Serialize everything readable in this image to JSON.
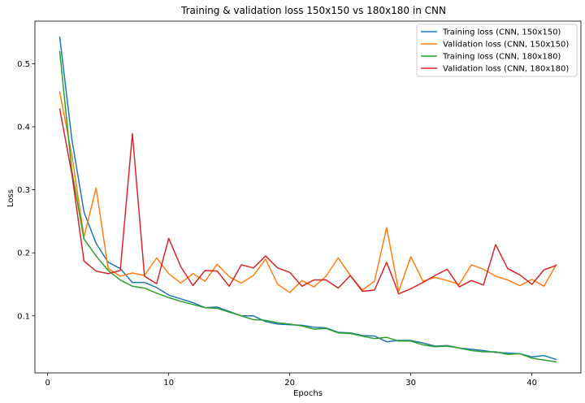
{
  "chart_data": {
    "type": "line",
    "title": "Training & validation loss 150x150 vs 180x180 in CNN",
    "xlabel": "Epochs",
    "ylabel": "Loss",
    "xlim": [
      -1.05,
      44.05
    ],
    "ylim": [
      0.0095,
      0.5675
    ],
    "xticks": [
      0,
      10,
      20,
      30,
      40
    ],
    "yticks": [
      0.1,
      0.2,
      0.3,
      0.4,
      0.5
    ],
    "grid": false,
    "legend_position": "top-right",
    "x": [
      1,
      2,
      3,
      4,
      5,
      6,
      7,
      8,
      9,
      10,
      11,
      12,
      13,
      14,
      15,
      16,
      17,
      18,
      19,
      20,
      21,
      22,
      23,
      24,
      25,
      26,
      27,
      28,
      29,
      30,
      31,
      32,
      33,
      34,
      35,
      36,
      37,
      38,
      39,
      40,
      41,
      42
    ],
    "series": [
      {
        "name": "Training loss (CNN, 150x150)",
        "color": "#1f77b4",
        "values": [
          0.542,
          0.38,
          0.265,
          0.215,
          0.185,
          0.175,
          0.153,
          0.153,
          0.145,
          0.133,
          0.127,
          0.121,
          0.113,
          0.114,
          0.107,
          0.1,
          0.1,
          0.091,
          0.087,
          0.086,
          0.085,
          0.082,
          0.081,
          0.074,
          0.073,
          0.069,
          0.068,
          0.059,
          0.061,
          0.061,
          0.057,
          0.052,
          0.053,
          0.049,
          0.047,
          0.045,
          0.042,
          0.041,
          0.04,
          0.035,
          0.037,
          0.031
        ]
      },
      {
        "name": "Validation loss (CNN, 150x150)",
        "color": "#ff7f0e",
        "values": [
          0.455,
          0.355,
          0.225,
          0.303,
          0.175,
          0.163,
          0.168,
          0.164,
          0.192,
          0.167,
          0.152,
          0.167,
          0.155,
          0.182,
          0.162,
          0.152,
          0.164,
          0.19,
          0.15,
          0.137,
          0.156,
          0.146,
          0.163,
          0.192,
          0.164,
          0.141,
          0.155,
          0.24,
          0.139,
          0.194,
          0.155,
          0.161,
          0.156,
          0.15,
          0.181,
          0.174,
          0.163,
          0.157,
          0.148,
          0.158,
          0.147,
          0.181
        ]
      },
      {
        "name": "Training loss (CNN, 180x180)",
        "color": "#2ca02c",
        "values": [
          0.519,
          0.33,
          0.222,
          0.195,
          0.172,
          0.157,
          0.147,
          0.144,
          0.136,
          0.129,
          0.123,
          0.118,
          0.113,
          0.112,
          0.106,
          0.1,
          0.094,
          0.093,
          0.089,
          0.087,
          0.084,
          0.079,
          0.08,
          0.073,
          0.072,
          0.068,
          0.064,
          0.066,
          0.06,
          0.06,
          0.054,
          0.051,
          0.052,
          0.049,
          0.045,
          0.043,
          0.043,
          0.039,
          0.04,
          0.033,
          0.03,
          0.027
        ]
      },
      {
        "name": "Validation loss (CNN, 180x180)",
        "color": "#d62728",
        "values": [
          0.428,
          0.325,
          0.187,
          0.171,
          0.167,
          0.172,
          0.389,
          0.163,
          0.151,
          0.223,
          0.178,
          0.148,
          0.172,
          0.171,
          0.147,
          0.181,
          0.176,
          0.195,
          0.176,
          0.169,
          0.147,
          0.157,
          0.157,
          0.144,
          0.164,
          0.139,
          0.141,
          0.185,
          0.135,
          0.143,
          0.153,
          0.164,
          0.174,
          0.146,
          0.156,
          0.149,
          0.213,
          0.175,
          0.165,
          0.15,
          0.173,
          0.18
        ]
      }
    ]
  }
}
